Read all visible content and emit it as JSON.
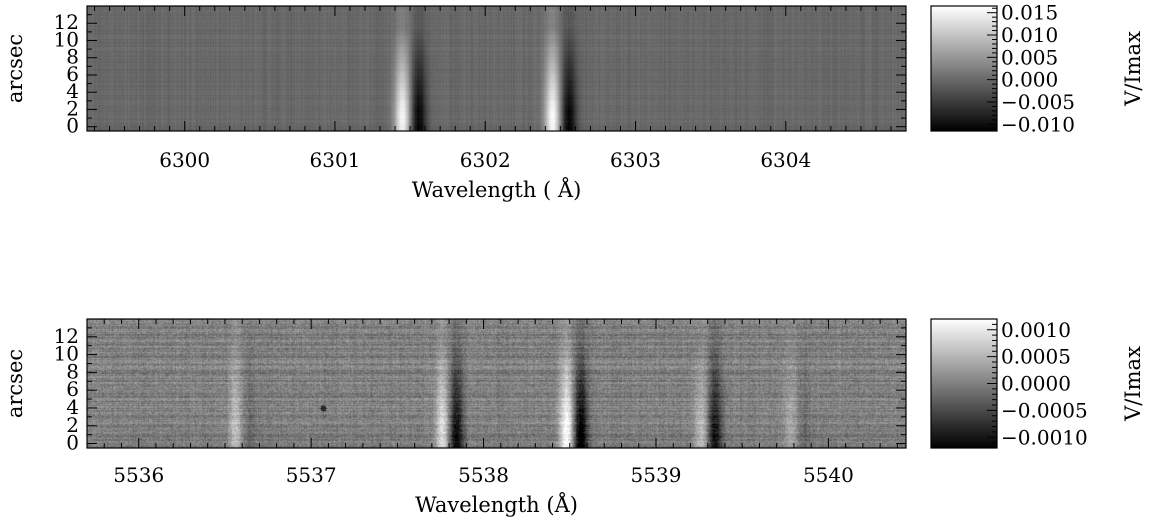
{
  "chart_data": [
    {
      "type": "heatmap",
      "title": "",
      "xlabel": "Wavelength ( Å)",
      "ylabel": "arcsec",
      "xlim": [
        6299.35,
        6304.8
      ],
      "ylim": [
        -0.5,
        14
      ],
      "x_ticks": [
        6300,
        6301,
        6302,
        6303,
        6304
      ],
      "x_tick_labels": [
        "6300",
        "6301",
        "6302",
        "6303",
        "6304"
      ],
      "y_ticks": [
        0,
        2,
        4,
        6,
        8,
        10,
        12
      ],
      "y_tick_labels": [
        "0",
        "2",
        "4",
        "6",
        "8",
        "10",
        "12"
      ],
      "colorbar": {
        "label": "V/Imax",
        "range": [
          -0.0115,
          0.0165
        ],
        "ticks": [
          0.015,
          0.01,
          0.005,
          0.0,
          -0.005,
          -0.01
        ],
        "tick_labels": [
          "0.015",
          "0.010",
          "0.005",
          "0.000",
          "−0.005",
          "−0.010"
        ],
        "colormap": "grayscale"
      },
      "features": [
        {
          "center_wavelength": 6301.5,
          "peak": 0.016,
          "trough": -0.011
        },
        {
          "center_wavelength": 6302.5,
          "peak": 0.016,
          "trough": -0.011
        }
      ]
    },
    {
      "type": "heatmap",
      "title": "",
      "xlabel": "Wavelength (Å)",
      "ylabel": "arcsec",
      "xlim": [
        5535.7,
        5540.45
      ],
      "ylim": [
        -0.5,
        14
      ],
      "x_ticks": [
        5536,
        5537,
        5538,
        5539,
        5540
      ],
      "x_tick_labels": [
        "5536",
        "5537",
        "5538",
        "5539",
        "5540"
      ],
      "y_ticks": [
        0,
        2,
        4,
        6,
        8,
        10,
        12
      ],
      "y_tick_labels": [
        "0",
        "2",
        "4",
        "6",
        "8",
        "10",
        "12"
      ],
      "colorbar": {
        "label": "V/Imax",
        "range": [
          -0.0012,
          0.0012
        ],
        "ticks": [
          0.001,
          0.0005,
          0.0,
          -0.0005,
          -0.001
        ],
        "tick_labels": [
          "0.0010",
          "0.0005",
          "0.0000",
          "−0.0005",
          "−0.0010"
        ],
        "colormap": "grayscale"
      },
      "features": [
        {
          "center_wavelength": 5536.6,
          "peak": 0.0006,
          "trough": -0.0002
        },
        {
          "center_wavelength": 5537.8,
          "peak": 0.0009,
          "trough": -0.0011
        },
        {
          "center_wavelength": 5538.52,
          "peak": 0.0013,
          "trough": -0.0013
        },
        {
          "center_wavelength": 5539.3,
          "peak": 0.0006,
          "trough": -0.001
        },
        {
          "center_wavelength": 5539.82,
          "peak": 0.0004,
          "trough": -0.0002
        }
      ]
    }
  ]
}
